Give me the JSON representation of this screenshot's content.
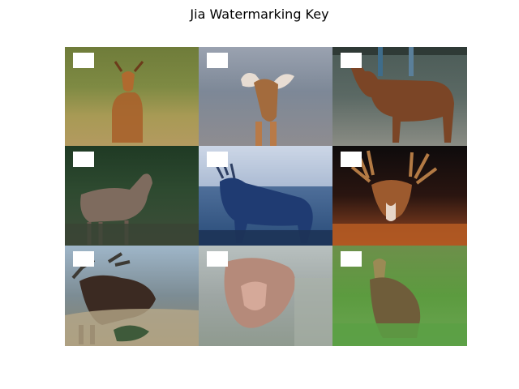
{
  "title": "Jia Watermarking Key",
  "tiles": [
    {
      "subject": "deer-image"
    },
    {
      "subject": "deer-image"
    },
    {
      "subject": "deer-image"
    },
    {
      "subject": "deer-image"
    },
    {
      "subject": "deer-image"
    },
    {
      "subject": "deer-image"
    },
    {
      "subject": "deer-image"
    },
    {
      "subject": "deer-image"
    },
    {
      "subject": "deer-image"
    }
  ]
}
